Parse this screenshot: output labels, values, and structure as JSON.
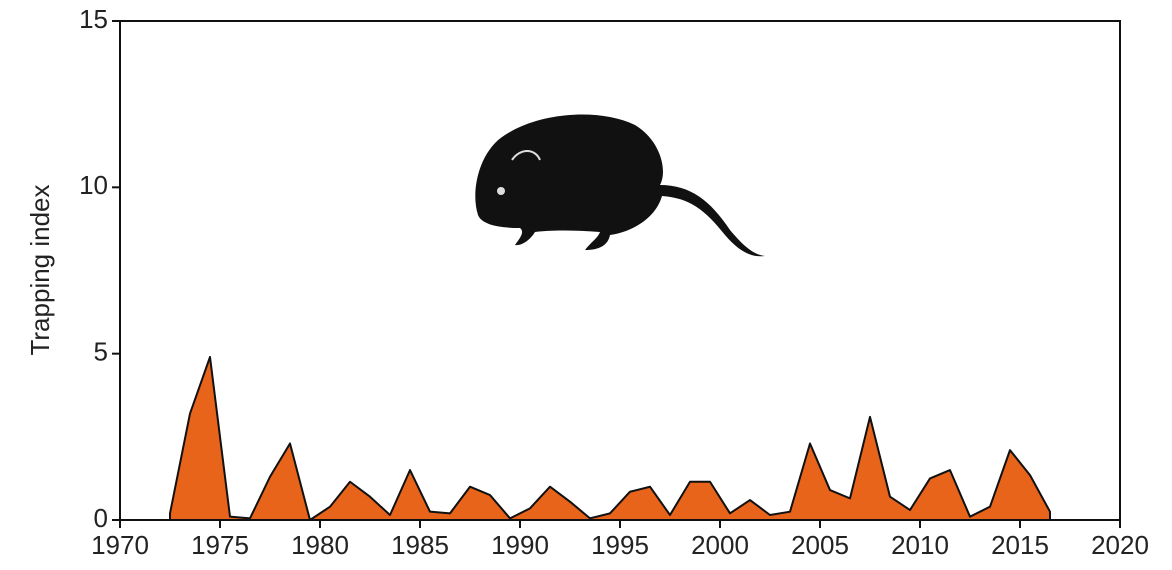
{
  "chart_data": {
    "type": "area",
    "y_label": "Trapping index",
    "x": [
      1972.5,
      1973.5,
      1974.5,
      1975.5,
      1976.5,
      1977.5,
      1978.5,
      1979.5,
      1980.5,
      1981.5,
      1982.5,
      1983.5,
      1984.5,
      1985.5,
      1986.5,
      1987.5,
      1988.5,
      1989.5,
      1990.5,
      1991.5,
      1992.5,
      1993.5,
      1994.5,
      1995.5,
      1996.5,
      1997.5,
      1998.5,
      1999.5,
      2000.5,
      2001.5,
      2002.5,
      2003.5,
      2004.5,
      2005.5,
      2006.5,
      2007.5,
      2008.5,
      2009.5,
      2010.5,
      2011.5,
      2012.5,
      2013.5,
      2014.5,
      2015.5,
      2016.5
    ],
    "values": [
      0.2,
      3.2,
      4.9,
      0.1,
      0.05,
      1.3,
      2.3,
      0.0,
      0.4,
      1.15,
      0.7,
      0.15,
      1.5,
      0.25,
      0.2,
      1.0,
      0.75,
      0.05,
      0.35,
      1.0,
      0.55,
      0.05,
      0.2,
      0.85,
      1.0,
      0.15,
      1.15,
      1.15,
      0.2,
      0.6,
      0.15,
      0.25,
      2.3,
      0.9,
      0.65,
      3.1,
      0.7,
      0.3,
      1.25,
      1.5,
      0.1,
      0.4,
      2.1,
      1.35,
      0.25
    ],
    "color": "#e8641b",
    "xlim": [
      1970,
      2020
    ],
    "xticks": [
      1970,
      1975,
      1980,
      1985,
      1990,
      1995,
      2000,
      2005,
      2010,
      2015,
      2020
    ],
    "ylim": [
      0,
      15
    ],
    "yticks": [
      0,
      5,
      10,
      15
    ]
  }
}
